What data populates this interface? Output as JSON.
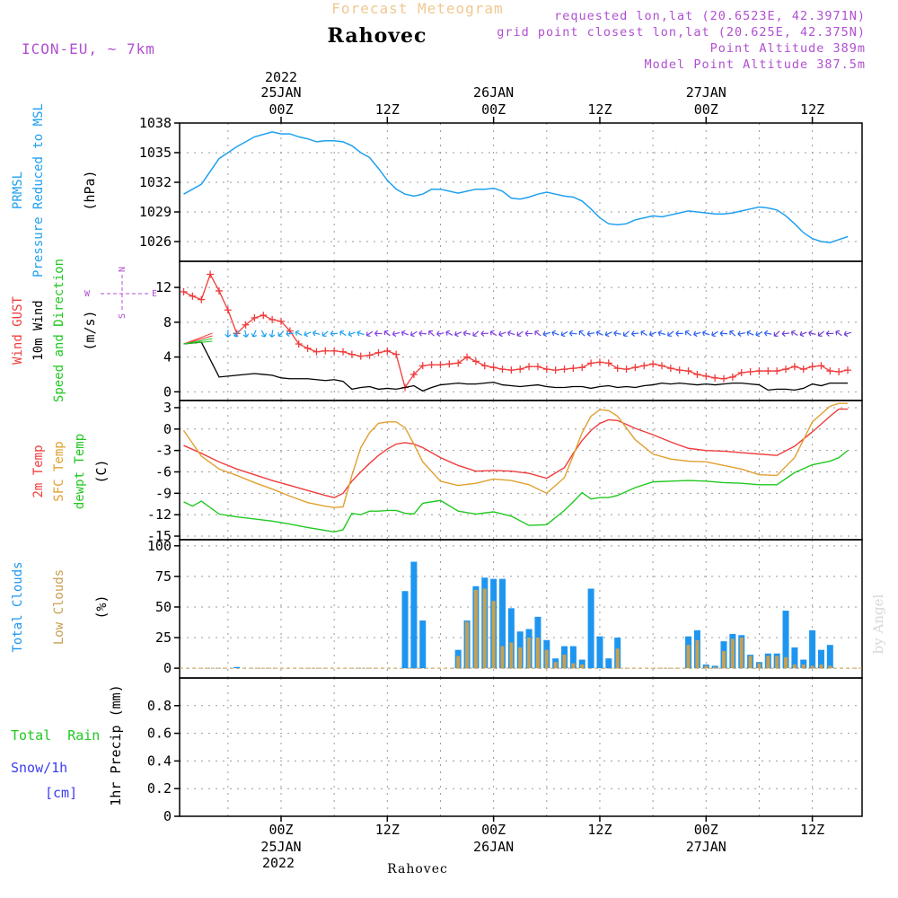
{
  "header": {
    "subtitle": "Forecast Meteogram",
    "location": "Rahovec",
    "model": "ICON-EU, ~ 7km",
    "requested": "requested lon,lat (20.6523E, 42.3971N)",
    "grid": "grid point closest lon,lat (20.625E, 42.375N)",
    "point_alt": "Point Altitude 389m",
    "model_alt": "Model Point Altitude 387.5m"
  },
  "time_axis": {
    "top_year": "2022",
    "top_labels": [
      {
        "t": 0,
        "l1": "25JAN",
        "l2": "00Z"
      },
      {
        "t": 12,
        "l1": "",
        "l2": "12Z"
      },
      {
        "t": 24,
        "l1": "26JAN",
        "l2": "00Z"
      },
      {
        "t": 36,
        "l1": "",
        "l2": "12Z"
      },
      {
        "t": 48,
        "l1": "27JAN",
        "l2": "00Z"
      },
      {
        "t": 60,
        "l1": "",
        "l2": "12Z"
      }
    ],
    "bottom_year": "2022",
    "bottom_labels": [
      {
        "t": 0,
        "l1": "00Z",
        "l2": "25JAN"
      },
      {
        "t": 12,
        "l1": "12Z",
        "l2": ""
      },
      {
        "t": 24,
        "l1": "00Z",
        "l2": "26JAN"
      },
      {
        "t": 36,
        "l1": "12Z",
        "l2": ""
      },
      {
        "t": 48,
        "l1": "00Z",
        "l2": "27JAN"
      },
      {
        "t": 60,
        "l1": "12Z",
        "l2": ""
      }
    ],
    "footer": "Rahovec"
  },
  "watermark": "by Angel",
  "colors": {
    "pressure": "#1ea0f0",
    "gust": "#f03c3c",
    "wind": "#000000",
    "temp2m": "#f03c3c",
    "sfc": "#e0a030",
    "dewpt": "#20c820",
    "total_clouds": "#1e96f0",
    "low_clouds": "#c8a050",
    "rain": "#20c820",
    "snow": "#3c3cf0",
    "purple": "#b050d0",
    "tan": "#f0c890"
  },
  "chart_data": [
    {
      "type": "line",
      "panel": "pressure",
      "label_lines": [
        "PRMSL",
        "Pressure Reduced to MSL"
      ],
      "unit": "(hPa)",
      "ylim": [
        1024,
        1038
      ],
      "yticks": [
        1026,
        1029,
        1032,
        1035,
        1038
      ],
      "x_hours": [
        -11,
        -9,
        -7,
        -5,
        -3,
        -1,
        0,
        1,
        2,
        3,
        4,
        5,
        6,
        7,
        8,
        9,
        10,
        11,
        12,
        13,
        14,
        15,
        16,
        17,
        18,
        19,
        20,
        21,
        22,
        23,
        24,
        25,
        26,
        27,
        28,
        29,
        30,
        31,
        32,
        33,
        34,
        35,
        36,
        37,
        38,
        39,
        40,
        41,
        42,
        43,
        44,
        45,
        46,
        47,
        48,
        49,
        50,
        51,
        52,
        53,
        54,
        55,
        56,
        57,
        58,
        59,
        60,
        61,
        62,
        63,
        64
      ],
      "series": [
        {
          "values": [
            1030.8,
            1031.8,
            1034.4,
            1035.6,
            1036.6,
            1037.1,
            1036.9,
            1036.9,
            1036.6,
            1036.4,
            1036.1,
            1036.2,
            1036.2,
            1036.1,
            1035.7,
            1035.0,
            1034.5,
            1033.4,
            1032.2,
            1031.3,
            1030.8,
            1030.6,
            1030.8,
            1031.3,
            1031.3,
            1031.1,
            1030.9,
            1031.1,
            1031.3,
            1031.3,
            1031.4,
            1031.1,
            1030.4,
            1030.3,
            1030.5,
            1030.8,
            1031.0,
            1030.8,
            1030.6,
            1030.5,
            1030.1,
            1029.3,
            1028.4,
            1027.8,
            1027.7,
            1027.8,
            1028.2,
            1028.4,
            1028.6,
            1028.5,
            1028.7,
            1028.9,
            1029.1,
            1029.0,
            1028.9,
            1028.8,
            1028.8,
            1028.9,
            1029.1,
            1029.3,
            1029.5,
            1029.4,
            1029.2,
            1028.6,
            1027.8,
            1026.9,
            1026.3,
            1026.0,
            1025.9,
            1026.2,
            1026.5
          ]
        }
      ]
    },
    {
      "type": "line",
      "panel": "wind",
      "label_lines": [
        "Wind GUST",
        "10m Wind",
        "Speed and Direction"
      ],
      "unit": "(m/s)",
      "compass": {
        "n": "N",
        "s": "S",
        "w": "W",
        "e": "E"
      },
      "ylim": [
        -1,
        15
      ],
      "yticks": [
        0,
        4,
        8,
        12
      ],
      "series": [
        {
          "name": "Wind GUST",
          "x_hours": [
            -11,
            -10,
            -9,
            -8,
            -7,
            -6,
            -5,
            -4,
            -3,
            -2,
            -1,
            0,
            1,
            2,
            3,
            4,
            5,
            6,
            7,
            8,
            9,
            10,
            11,
            12,
            13,
            14,
            15,
            16,
            17,
            18,
            19,
            20,
            21,
            22,
            23,
            24,
            25,
            26,
            27,
            28,
            29,
            30,
            31,
            32,
            33,
            34,
            35,
            36,
            37,
            38,
            39,
            40,
            41,
            42,
            43,
            44,
            45,
            46,
            47,
            48,
            49,
            50,
            51,
            52,
            53,
            54,
            55,
            56,
            57,
            58,
            59,
            60,
            61,
            62,
            63,
            64
          ],
          "values": [
            11.5,
            11.0,
            10.6,
            13.5,
            11.6,
            9.4,
            6.7,
            7.7,
            8.5,
            8.8,
            8.3,
            8.1,
            7.0,
            5.5,
            5.0,
            4.6,
            4.7,
            4.7,
            4.6,
            4.3,
            4.1,
            4.2,
            4.5,
            4.7,
            4.3,
            0.5,
            2.0,
            3.0,
            3.1,
            3.1,
            3.2,
            3.3,
            4.0,
            3.5,
            3.0,
            2.8,
            2.6,
            2.5,
            2.6,
            2.9,
            2.9,
            2.6,
            2.5,
            2.6,
            2.7,
            2.8,
            3.3,
            3.4,
            3.3,
            2.7,
            2.6,
            2.8,
            3.0,
            3.2,
            3.0,
            2.7,
            2.5,
            2.4,
            2.0,
            1.8,
            1.6,
            1.5,
            1.7,
            2.2,
            2.3,
            2.4,
            2.4,
            2.4,
            2.6,
            2.9,
            2.6,
            2.9,
            3.0,
            2.4,
            2.3,
            2.5
          ]
        },
        {
          "name": "10m Wind",
          "x_hours": [
            -11,
            -9,
            -7,
            -5,
            -3,
            -2,
            -1,
            0,
            1,
            2,
            3,
            4,
            5,
            6,
            7,
            8,
            9,
            10,
            11,
            12,
            13,
            14,
            15,
            16,
            17,
            18,
            19,
            20,
            21,
            22,
            23,
            24,
            25,
            26,
            27,
            28,
            29,
            30,
            31,
            32,
            33,
            34,
            35,
            36,
            37,
            38,
            39,
            40,
            41,
            42,
            43,
            44,
            45,
            46,
            47,
            48,
            49,
            50,
            51,
            52,
            53,
            54,
            55,
            56,
            57,
            58,
            59,
            60,
            61,
            62,
            63,
            64
          ],
          "values": [
            5.5,
            5.7,
            1.7,
            1.9,
            2.1,
            2.0,
            1.9,
            1.6,
            1.5,
            1.5,
            1.5,
            1.4,
            1.3,
            1.4,
            1.2,
            0.3,
            0.5,
            0.6,
            0.3,
            0.4,
            0.3,
            0.5,
            0.7,
            0.1,
            0.5,
            0.8,
            0.9,
            1.0,
            0.9,
            0.9,
            1.0,
            1.1,
            0.8,
            0.7,
            0.6,
            0.7,
            0.8,
            0.6,
            0.5,
            0.5,
            0.6,
            0.6,
            0.4,
            0.6,
            0.7,
            0.5,
            0.6,
            0.5,
            0.7,
            0.8,
            1.0,
            0.9,
            1.0,
            0.9,
            0.8,
            0.9,
            0.8,
            0.9,
            1.0,
            1.0,
            0.9,
            0.8,
            0.2,
            0.3,
            0.3,
            0.2,
            0.4,
            0.9,
            0.7,
            1.0,
            1.0,
            1.0
          ]
        }
      ]
    },
    {
      "type": "line",
      "panel": "temperature",
      "label_lines": [
        "2m Temp",
        "SFC Temp",
        "dewpt Temp"
      ],
      "unit": "(C)",
      "ylim": [
        -15.5,
        4
      ],
      "yticks": [
        3,
        0,
        -3,
        -6,
        -9,
        -12,
        -15
      ],
      "series": [
        {
          "name": "2m Temp",
          "x_hours": [
            -11,
            -9,
            -7,
            -5,
            -3,
            -1,
            1,
            3,
            5,
            6,
            7,
            8,
            9,
            10,
            11,
            12,
            13,
            14,
            15,
            16,
            18,
            20,
            22,
            24,
            26,
            28,
            30,
            32,
            33,
            34,
            35,
            36,
            37,
            38,
            40,
            42,
            44,
            46,
            48,
            50,
            52,
            54,
            56,
            58,
            60,
            62,
            63,
            64
          ],
          "values": [
            -2.3,
            -3.4,
            -4.6,
            -5.6,
            -6.4,
            -7.2,
            -7.9,
            -8.6,
            -9.3,
            -9.6,
            -9.0,
            -7.3,
            -6.0,
            -4.8,
            -3.7,
            -2.8,
            -2.1,
            -1.9,
            -2.1,
            -2.6,
            -4.0,
            -5.1,
            -5.9,
            -5.8,
            -5.9,
            -6.2,
            -6.9,
            -5.4,
            -3.4,
            -1.6,
            -0.2,
            0.8,
            1.3,
            1.2,
            0.1,
            -0.8,
            -1.8,
            -2.7,
            -3.0,
            -3.1,
            -3.3,
            -3.5,
            -3.7,
            -2.4,
            -0.4,
            1.8,
            2.8,
            2.8
          ]
        },
        {
          "name": "SFC Temp",
          "x_hours": [
            -11,
            -9,
            -7,
            -5,
            -3,
            -1,
            1,
            3,
            5,
            6,
            7,
            8,
            9,
            10,
            11,
            12,
            13,
            14,
            15,
            16,
            18,
            20,
            22,
            24,
            26,
            28,
            30,
            32,
            33,
            34,
            35,
            36,
            37,
            38,
            40,
            42,
            44,
            46,
            48,
            50,
            52,
            54,
            56,
            58,
            60,
            62,
            63,
            64
          ],
          "values": [
            -0.2,
            -3.8,
            -5.6,
            -6.5,
            -7.5,
            -8.4,
            -9.4,
            -10.3,
            -10.8,
            -11.0,
            -10.9,
            -6.5,
            -2.6,
            -0.5,
            0.8,
            1.0,
            1.0,
            0.2,
            -2.1,
            -4.6,
            -7.3,
            -7.9,
            -7.6,
            -7.0,
            -7.2,
            -7.8,
            -9.0,
            -6.8,
            -3.7,
            -0.5,
            1.8,
            2.7,
            2.6,
            1.8,
            -1.5,
            -3.5,
            -4.2,
            -4.5,
            -4.6,
            -5.1,
            -5.6,
            -6.4,
            -6.5,
            -4.0,
            1.0,
            3.2,
            3.6,
            3.6
          ]
        },
        {
          "name": "dewpt Temp",
          "x_hours": [
            -11,
            -10,
            -9,
            -7,
            -5,
            -3,
            -1,
            1,
            3,
            5,
            6,
            7,
            8,
            9,
            10,
            11,
            12,
            13,
            14,
            15,
            16,
            18,
            20,
            22,
            24,
            26,
            28,
            30,
            32,
            33,
            34,
            35,
            36,
            37,
            38,
            40,
            42,
            44,
            46,
            48,
            50,
            52,
            54,
            56,
            58,
            60,
            62,
            63,
            64
          ],
          "values": [
            -10.2,
            -10.8,
            -10.1,
            -11.9,
            -12.3,
            -12.6,
            -12.9,
            -13.3,
            -13.8,
            -14.2,
            -14.4,
            -14.1,
            -11.8,
            -12.0,
            -11.5,
            -11.5,
            -11.4,
            -11.4,
            -11.8,
            -11.9,
            -10.4,
            -10.0,
            -11.5,
            -11.9,
            -11.6,
            -12.2,
            -13.5,
            -13.4,
            -11.4,
            -10.2,
            -8.9,
            -9.8,
            -9.6,
            -9.6,
            -9.3,
            -8.2,
            -7.4,
            -7.3,
            -7.2,
            -7.3,
            -7.5,
            -7.6,
            -7.8,
            -7.8,
            -6.1,
            -5.0,
            -4.5,
            -4.0,
            -3.0
          ]
        }
      ]
    },
    {
      "type": "bar",
      "panel": "clouds",
      "label_lines": [
        "Total Clouds",
        "Low Clouds"
      ],
      "unit": "(%)",
      "ylim": [
        -8,
        105
      ],
      "yticks": [
        0,
        25,
        50,
        75,
        100
      ],
      "x_hours": [
        -5,
        13,
        14,
        15,
        16,
        20,
        21,
        22,
        23,
        24,
        25,
        26,
        27,
        28,
        29,
        30,
        31,
        32,
        33,
        34,
        35,
        36,
        37,
        38,
        46,
        47,
        48,
        49,
        50,
        51,
        52,
        53,
        54,
        55,
        56,
        57,
        58,
        59,
        60,
        61,
        62,
        63,
        64
      ],
      "series": [
        {
          "name": "Total Clouds",
          "values": [
            1,
            0,
            63,
            87,
            39,
            15,
            39,
            67,
            74,
            73,
            73,
            49,
            30,
            32,
            42,
            23,
            8,
            18,
            18,
            7,
            65,
            26,
            8,
            25,
            26,
            31,
            3,
            2,
            22,
            28,
            27,
            11,
            5,
            12,
            12,
            47,
            17,
            7,
            31,
            15,
            19,
            0,
            0
          ]
        },
        {
          "name": "Low Clouds",
          "values": [
            0,
            0,
            0,
            0,
            0,
            10,
            38,
            64,
            65,
            55,
            18,
            21,
            17,
            25,
            25,
            15,
            5,
            11,
            4,
            3,
            0,
            0,
            0,
            16,
            19,
            23,
            2,
            1,
            14,
            24,
            25,
            10,
            4,
            10,
            10,
            9,
            3,
            3,
            2,
            3,
            2,
            0,
            0
          ]
        }
      ]
    },
    {
      "type": "bar",
      "panel": "precip",
      "label_lines": [
        "Total  Rain",
        "Snow/1h",
        "[cm]"
      ],
      "unit": "1hr Precip (mm)",
      "ylim": [
        0,
        1.0
      ],
      "yticks": [
        0,
        0.2,
        0.4,
        0.6,
        0.8
      ],
      "ytick_labels": [
        "0",
        "0.2",
        "0.4",
        "0.6",
        "0.8"
      ],
      "series": [
        {
          "name": "Total  Rain",
          "values": []
        }
      ]
    }
  ]
}
